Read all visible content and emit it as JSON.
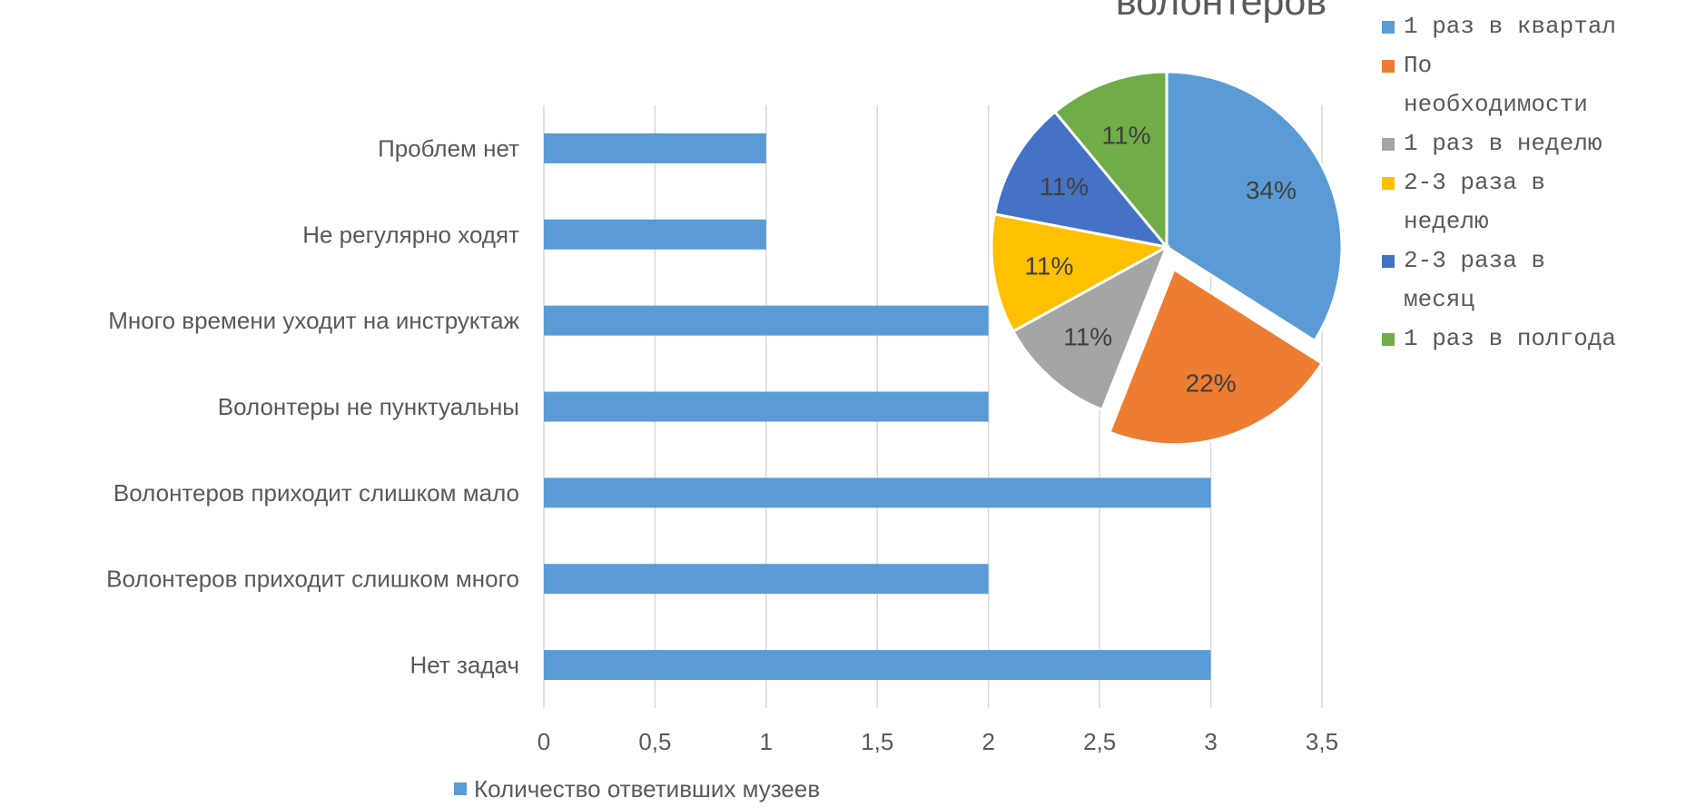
{
  "chart_data": [
    {
      "type": "hbar",
      "categories": [
        "Проблем нет",
        "Не регулярно ходят",
        "Много времени уходит на инструктаж",
        "Волонтеры не пунктуальны",
        "Волонтеров приходит слишком мало",
        "Волонтеров приходит слишком много",
        "Нет задач"
      ],
      "series": [
        {
          "name": "Количество ответивших музеев",
          "color": "#5b9bd5",
          "values": [
            1,
            1,
            2,
            2,
            3,
            2,
            3
          ]
        }
      ],
      "xlim": [
        0,
        3.5
      ],
      "xticks": [
        0,
        {
          "value": 0.5,
          "label": "0,5"
        },
        1,
        {
          "value": 1.5,
          "label": "1,5"
        },
        2,
        {
          "value": 2.5,
          "label": "2,5"
        },
        3,
        {
          "value": 3.5,
          "label": "3,5"
        }
      ],
      "grid": true,
      "legend": "bottom"
    },
    {
      "type": "pie",
      "title": "волонтеров",
      "categories": [
        "1 раз в квартал",
        "По необходимости",
        "1 раз в неделю",
        "2-3 раза в неделю",
        "2-3 раза в месяц",
        "1 раз в полгода"
      ],
      "values": [
        34,
        22,
        11,
        11,
        11,
        11
      ],
      "value_labels": [
        "34%",
        "22%",
        "11%",
        "11%",
        "11%",
        "11%"
      ],
      "colors": [
        "#5b9bd5",
        "#ed7d31",
        "#a5a5a5",
        "#ffc000",
        "#4472c4",
        "#70ad47"
      ],
      "explode": [
        false,
        true,
        false,
        false,
        false,
        false
      ],
      "legend": "right"
    }
  ]
}
